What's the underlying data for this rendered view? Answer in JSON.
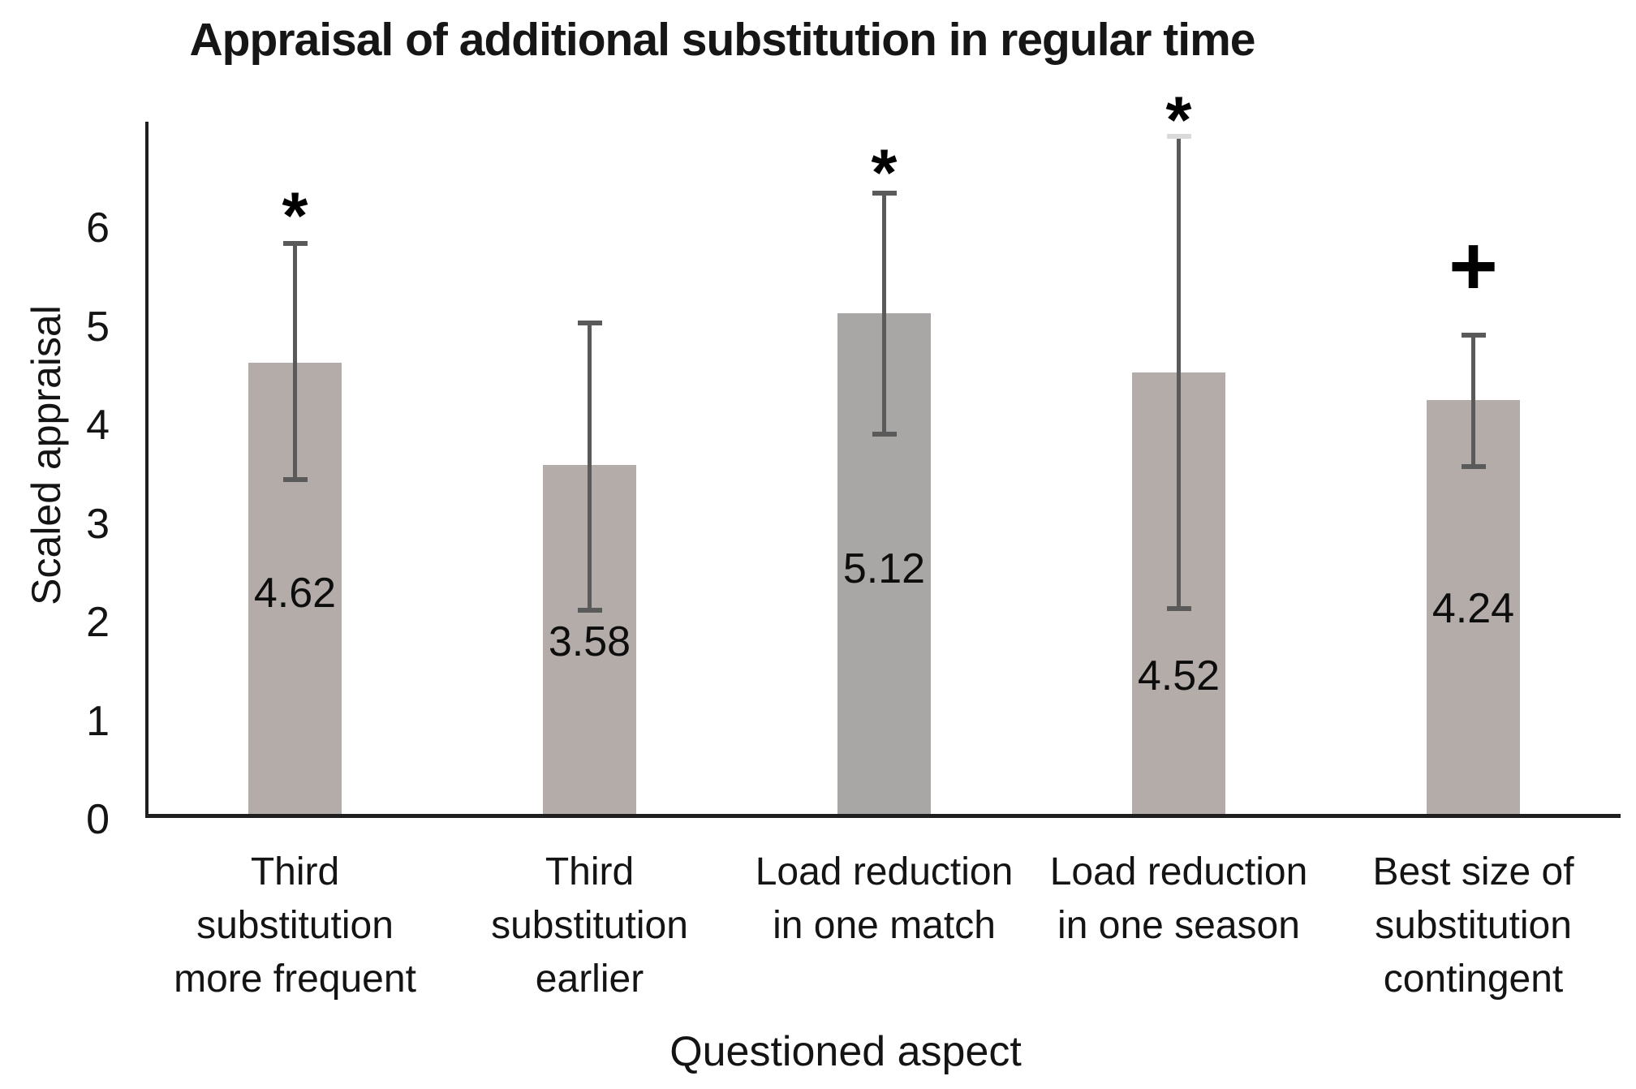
{
  "figure": {
    "title": "Appraisal of additional substitution in regular time",
    "x_axis_title": "Questioned aspect",
    "y_axis_title": "Scaled appraisal"
  },
  "colors": {
    "bar_fill": "#b3aca8",
    "bar_fill_dark": "#a9a7a5",
    "error_bar": "#5a5a5a",
    "error_cap_faint": "#dcdad8",
    "axis_line": "#1f1f1f",
    "text": "#141414",
    "background": "#ffffff"
  },
  "chart_data": {
    "type": "bar",
    "title": "Appraisal of additional substitution in regular time",
    "xlabel": "Questioned aspect",
    "ylabel": "Scaled appraisal",
    "ylim": [
      0,
      7.05
    ],
    "yticks": [
      0,
      1,
      2,
      3,
      4,
      5,
      6
    ],
    "grid": false,
    "legend": false,
    "categories": [
      "Third substitution more frequent",
      "Third substitution earlier",
      "Load reduction in one match",
      "Load reduction in one season",
      "Best size of substitution contingent"
    ],
    "series": [
      {
        "name": "Scaled appraisal",
        "points": [
          {
            "category": "Third substitution more frequent",
            "category_lines": [
              "Third",
              "substitution",
              "more frequent"
            ],
            "value": 4.62,
            "value_label": "4.62",
            "error_low": 3.43,
            "error_high": 5.83,
            "sig_marker": "*",
            "marker_y": 6.2,
            "value_label_y": 2.28,
            "bar_shade": "light",
            "faint_top_cap": false
          },
          {
            "category": "Third substitution earlier",
            "category_lines": [
              "Third",
              "substitution",
              "earlier"
            ],
            "value": 3.58,
            "value_label": "3.58",
            "error_low": 2.11,
            "error_high": 5.02,
            "sig_marker": "",
            "marker_y": null,
            "value_label_y": 1.79,
            "bar_shade": "light",
            "faint_top_cap": false
          },
          {
            "category": "Load reduction in one match",
            "category_lines": [
              "Load reduction",
              "in one match"
            ],
            "value": 5.12,
            "value_label": "5.12",
            "error_low": 3.89,
            "error_high": 6.34,
            "sig_marker": "*",
            "marker_y": 6.63,
            "value_label_y": 2.53,
            "bar_shade": "dark",
            "faint_top_cap": false
          },
          {
            "category": "Load reduction in one season",
            "category_lines": [
              "Load reduction",
              "in one season"
            ],
            "value": 4.52,
            "value_label": "4.52",
            "error_low": 2.12,
            "error_high": 6.91,
            "sig_marker": "*",
            "marker_y": 7.17,
            "value_label_y": 1.44,
            "bar_shade": "light",
            "faint_top_cap": true
          },
          {
            "category": "Best size of substitution contingent",
            "category_lines": [
              "Best size of",
              "substitution",
              "contingent"
            ],
            "value": 4.24,
            "value_label": "4.24",
            "error_low": 3.56,
            "error_high": 4.9,
            "sig_marker": "+",
            "marker_y": 5.6,
            "value_label_y": 2.12,
            "bar_shade": "light",
            "faint_top_cap": false
          }
        ]
      }
    ]
  }
}
